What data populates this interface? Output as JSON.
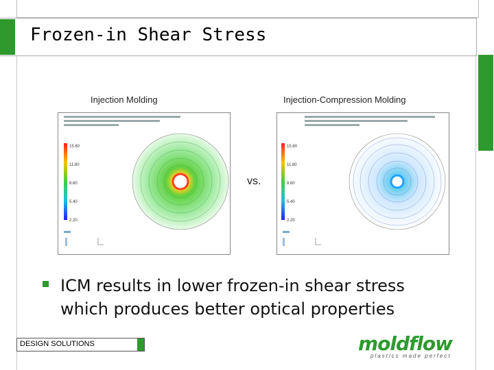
{
  "slide": {
    "title": "Frozen-in Shear Stress",
    "left_caption": "Injection Molding",
    "right_caption": "Injection-Compression Molding",
    "vs_label": "vs.",
    "bullet": "ICM results in lower frozen-in shear stress which produces better optical properties",
    "footer_label": "DESIGN SOLUTIONS",
    "logo_text": "moldflow",
    "logo_tagline": "plastics made perfect"
  },
  "legend_ticks": [
    "15.60",
    "11.80",
    "8.60",
    "5.40",
    "2.20"
  ],
  "colors": {
    "accent_green": "#2e9a2e",
    "frame_gray": "#b9b9b9"
  }
}
